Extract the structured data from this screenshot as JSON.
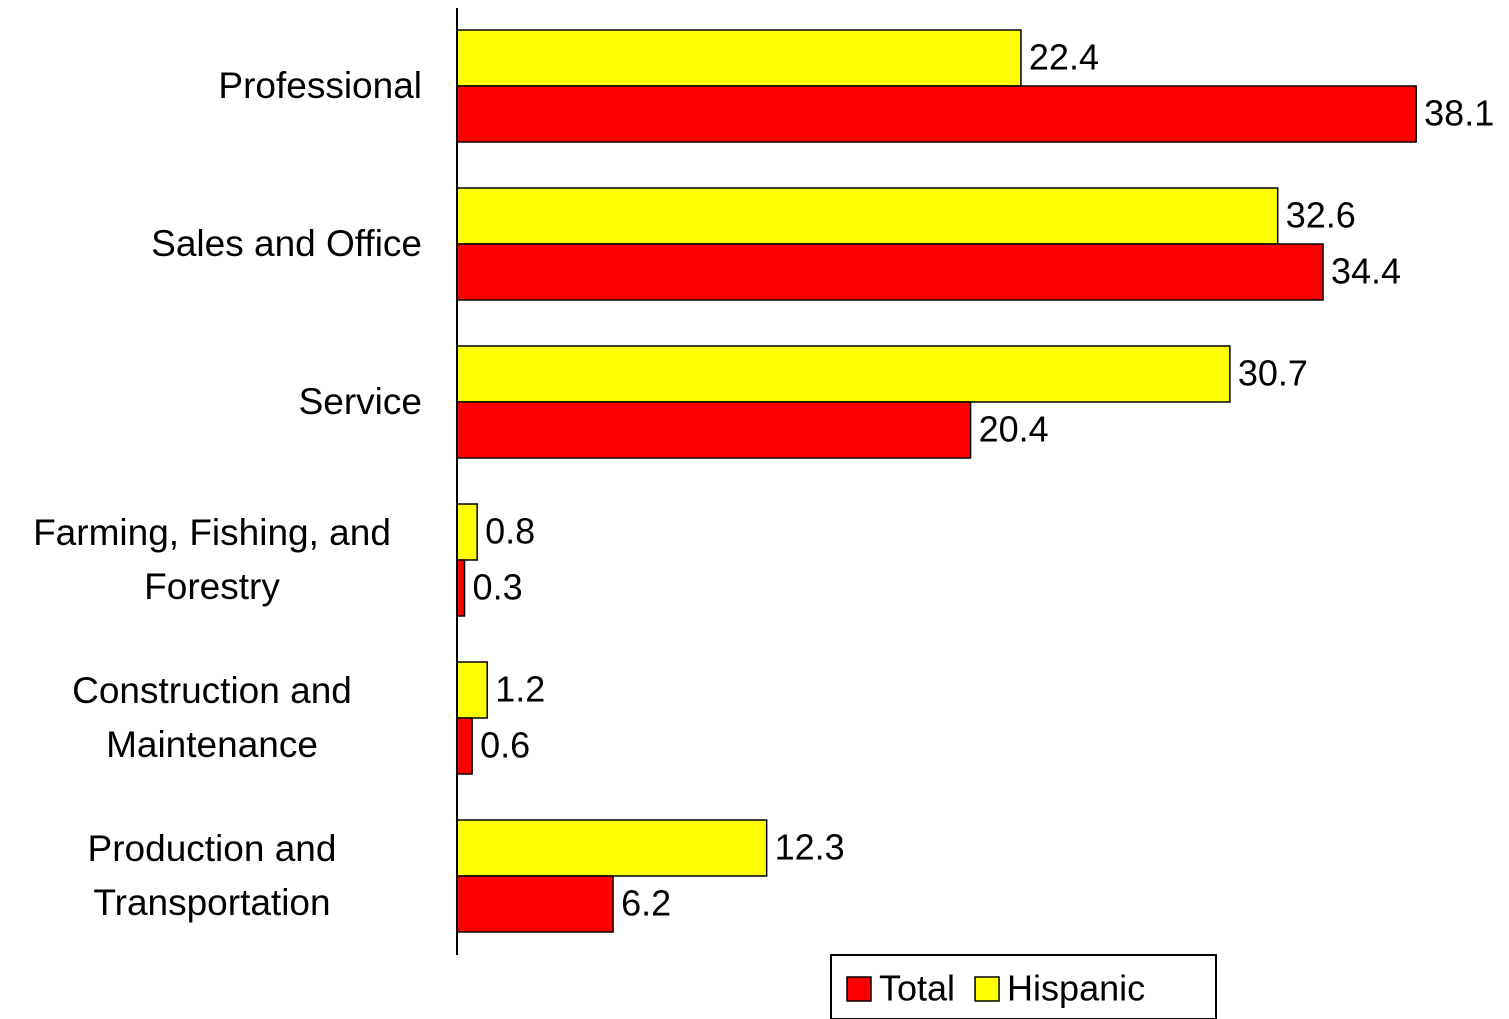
{
  "chart_data": {
    "type": "bar",
    "orientation": "horizontal",
    "categories": [
      "Professional",
      "Sales and Office",
      "Service",
      "Farming, Fishing, and Forestry",
      "Construction and Maintenance",
      "Production and Transportation"
    ],
    "series": [
      {
        "name": "Total",
        "color": "#ff0000",
        "values": [
          38.1,
          34.4,
          20.4,
          0.3,
          0.6,
          6.2
        ]
      },
      {
        "name": "Hispanic",
        "color": "#ffff00",
        "values": [
          22.4,
          32.6,
          30.7,
          0.8,
          1.2,
          12.3
        ]
      }
    ],
    "xlim": [
      0,
      40
    ],
    "legend": "bottom"
  }
}
